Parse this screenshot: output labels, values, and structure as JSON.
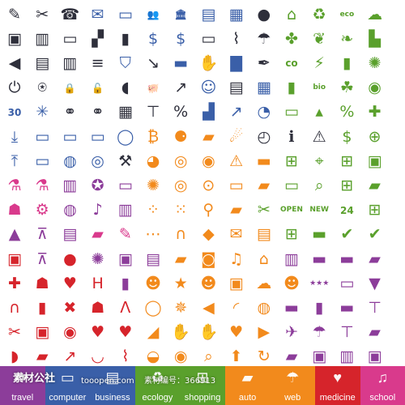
{
  "colors": {
    "dark": "#2e2f3b",
    "blue": "#3a5fa8",
    "green": "#5aa02c",
    "orange": "#f28a1c",
    "red": "#d6242b",
    "purple": "#8c3d9a",
    "pink": "#d93a8c",
    "grey": "#8c8c8c"
  },
  "icon_rows": [
    [
      [
        "pen-icon",
        "✎",
        "dark"
      ],
      [
        "tools-icon",
        "✂",
        "dark"
      ],
      [
        "phone-icon",
        "☎",
        "dark"
      ],
      [
        "mail-icon",
        "✉",
        "blue"
      ],
      [
        "folder-icon",
        "▭",
        "blue"
      ],
      [
        "users-icon",
        "👥",
        "blue"
      ],
      [
        "bank-icon",
        "🏛",
        "blue"
      ],
      [
        "document-icon",
        "▤",
        "blue"
      ],
      [
        "clipboard-icon",
        "▦",
        "blue"
      ],
      [
        "disc-icon",
        "●",
        "dark"
      ],
      [
        "home-icon",
        "⌂",
        "green"
      ],
      [
        "recycle-icon",
        "♻",
        "green"
      ],
      [
        "eco-text-icon",
        "eco",
        "green"
      ],
      [
        "cloud-icon",
        "☁",
        "green"
      ]
    ],
    [
      [
        "speaker-icon",
        "▣",
        "dark"
      ],
      [
        "address-book-icon",
        "▥",
        "dark"
      ],
      [
        "monitor-icon",
        "▭",
        "dark"
      ],
      [
        "clapper-icon",
        "▞",
        "dark"
      ],
      [
        "file-icon",
        "▮",
        "dark"
      ],
      [
        "money-bag-icon",
        "$",
        "blue"
      ],
      [
        "coin-bag-icon",
        "$",
        "blue"
      ],
      [
        "id-card-icon",
        "▭",
        "dark"
      ],
      [
        "chart-screen-icon",
        "⌇",
        "dark"
      ],
      [
        "umbrella-icon",
        "☂",
        "dark"
      ],
      [
        "puzzle-icon",
        "✤",
        "green"
      ],
      [
        "leaves-icon",
        "❦",
        "green"
      ],
      [
        "sprout-icon",
        "❧",
        "green"
      ],
      [
        "factory-icon",
        "▙",
        "green"
      ]
    ],
    [
      [
        "sound-icon",
        "◀",
        "dark"
      ],
      [
        "printer-icon",
        "▤",
        "dark"
      ],
      [
        "trash-icon",
        "▥",
        "dark"
      ],
      [
        "server-icon",
        "≡",
        "dark"
      ],
      [
        "shield-icon",
        "⛉",
        "blue"
      ],
      [
        "decline-chart-icon",
        "↘",
        "dark"
      ],
      [
        "briefcase-icon",
        "▬",
        "blue"
      ],
      [
        "handshake-icon",
        "✋",
        "blue"
      ],
      [
        "bar-chart-icon",
        "▇",
        "blue"
      ],
      [
        "pen-tool-icon",
        "✒",
        "dark"
      ],
      [
        "co2-text-icon",
        "co",
        "green"
      ],
      [
        "plug-icon",
        "⚡",
        "green"
      ],
      [
        "battery-icon",
        "▮",
        "green"
      ],
      [
        "bulb-icon",
        "✺",
        "green"
      ]
    ],
    [
      [
        "power-icon",
        "⏻",
        "dark"
      ],
      [
        "router-icon",
        "⍟",
        "dark"
      ],
      [
        "lock-icon",
        "🔒",
        "dark"
      ],
      [
        "unlock-icon",
        "🔓",
        "dark"
      ],
      [
        "mouse-icon",
        "◖",
        "dark"
      ],
      [
        "piggy-bank-icon",
        "🐖",
        "blue"
      ],
      [
        "line-chart-icon",
        "↗",
        "dark"
      ],
      [
        "person-icon",
        "☺",
        "blue"
      ],
      [
        "fax-icon",
        "▤",
        "dark"
      ],
      [
        "solar-panel-icon",
        "▦",
        "blue"
      ],
      [
        "tablets-icon",
        "▮",
        "green"
      ],
      [
        "bio-text-icon",
        "bio",
        "green"
      ],
      [
        "footprint-icon",
        "☘",
        "green"
      ],
      [
        "globe-leaf-icon",
        "◉",
        "green"
      ]
    ],
    [
      [
        "calendar-icon",
        "30",
        "blue"
      ],
      [
        "network-icon",
        "✳",
        "blue"
      ],
      [
        "link-icon",
        "⚭",
        "dark"
      ],
      [
        "chain-icon",
        "⚭",
        "dark"
      ],
      [
        "calculator-icon",
        "▦",
        "dark"
      ],
      [
        "hierarchy-icon",
        "⊤",
        "dark"
      ],
      [
        "percent-icon",
        "%",
        "dark"
      ],
      [
        "growth-chart-icon",
        "▟",
        "blue"
      ],
      [
        "chart-board-icon",
        "↗",
        "blue"
      ],
      [
        "pie-chart-icon",
        "◔",
        "blue"
      ],
      [
        "credit-card-icon",
        "▭",
        "green"
      ],
      [
        "shopping-bag-icon",
        "▴",
        "green"
      ],
      [
        "percent-tag-icon",
        "%",
        "green"
      ],
      [
        "gift-icon",
        "✚",
        "green"
      ]
    ],
    [
      [
        "download-icon",
        "⤓",
        "blue"
      ],
      [
        "laptop-icon",
        "▭",
        "blue"
      ],
      [
        "chat-icon",
        "▭",
        "blue"
      ],
      [
        "windows-icon",
        "▭",
        "blue"
      ],
      [
        "chat-bubbles-icon",
        "◯",
        "blue"
      ],
      [
        "bitcoin-icon",
        "₿",
        "orange"
      ],
      [
        "motorbike-icon",
        "⚈",
        "orange"
      ],
      [
        "car-icon",
        "▰",
        "orange"
      ],
      [
        "runner-icon",
        "☄",
        "orange"
      ],
      [
        "gauge-icon",
        "◴",
        "dark"
      ],
      [
        "info-icon",
        "ℹ",
        "dark"
      ],
      [
        "warning-icon",
        "⚠",
        "dark"
      ],
      [
        "dollar-tag-icon",
        "$",
        "green"
      ],
      [
        "cart-add-icon",
        "⊕",
        "green"
      ]
    ],
    [
      [
        "upload-icon",
        "⤒",
        "blue"
      ],
      [
        "computer-icon",
        "▭",
        "blue"
      ],
      [
        "gamepad-icon",
        "◍",
        "blue"
      ],
      [
        "vinyl-icon",
        "◎",
        "blue"
      ],
      [
        "wrench-icon",
        "⚒",
        "dark"
      ],
      [
        "speedometer-icon",
        "◕",
        "orange"
      ],
      [
        "wheel-icon",
        "◎",
        "orange"
      ],
      [
        "steering-icon",
        "◉",
        "orange"
      ],
      [
        "road-icon",
        "⚠",
        "orange"
      ],
      [
        "ticket-icon",
        "▬",
        "orange"
      ],
      [
        "cart-icon",
        "⊞",
        "green"
      ],
      [
        "tag-icon",
        "⌖",
        "green"
      ],
      [
        "basket-icon",
        "⊞",
        "green"
      ],
      [
        "box-icon",
        "▣",
        "green"
      ]
    ],
    [
      [
        "microscope-icon",
        "⚗",
        "pink"
      ],
      [
        "flask-icon",
        "⚗",
        "pink"
      ],
      [
        "bookcase-icon",
        "▥",
        "purple"
      ],
      [
        "award-icon",
        "✪",
        "purple"
      ],
      [
        "ticket-badge-icon",
        "▭",
        "purple"
      ],
      [
        "citrus-icon",
        "✺",
        "orange"
      ],
      [
        "aps-badge-icon",
        "◎",
        "orange"
      ],
      [
        "battery-car-icon",
        "⊙",
        "orange"
      ],
      [
        "folder-car-icon",
        "▭",
        "orange"
      ],
      [
        "car-front-icon",
        "▰",
        "orange"
      ],
      [
        "credit-cards-icon",
        "▭",
        "green"
      ],
      [
        "magnifier-icon",
        "⌕",
        "green"
      ],
      [
        "trolley-icon",
        "⊞",
        "green"
      ],
      [
        "delivery-icon",
        "▰",
        "green"
      ]
    ],
    [
      [
        "person-stand-icon",
        "☗",
        "pink"
      ],
      [
        "gear-brain-icon",
        "⚙",
        "pink"
      ],
      [
        "globe-icon",
        "◍",
        "purple"
      ],
      [
        "music-icon",
        "♪",
        "purple"
      ],
      [
        "theatre-icon",
        "▥",
        "purple"
      ],
      [
        "seeds-icon",
        "⁘",
        "orange"
      ],
      [
        "joystick-icon",
        "⁙",
        "orange"
      ],
      [
        "pin-icon",
        "⚲",
        "orange"
      ],
      [
        "tow-truck-icon",
        "▰",
        "orange"
      ],
      [
        "scissors-coupon-icon",
        "✂",
        "green"
      ],
      [
        "open-sign-icon",
        "OPEN",
        "green"
      ],
      [
        "new-badge-icon",
        "NEW",
        "green"
      ],
      [
        "clock-24-icon",
        "24",
        "green"
      ],
      [
        "cart-green-icon",
        "⊞",
        "green"
      ]
    ],
    [
      [
        "graduation-icon",
        "▲",
        "purple"
      ],
      [
        "compass-icon",
        "⊼",
        "purple"
      ],
      [
        "sketchbook-icon",
        "▤",
        "purple"
      ],
      [
        "tablet-pen-icon",
        "▰",
        "pink"
      ],
      [
        "pencil-icon",
        "✎",
        "pink"
      ],
      [
        "share-icon",
        "⋯",
        "orange"
      ],
      [
        "headphones-icon",
        "∩",
        "orange"
      ],
      [
        "palette-icon",
        "◆",
        "orange"
      ],
      [
        "envelope-open-icon",
        "✉",
        "orange"
      ],
      [
        "mailbox-icon",
        "▤",
        "orange"
      ],
      [
        "sale-basket-icon",
        "⊞",
        "green"
      ],
      [
        "tag-sale-icon",
        "▬",
        "green"
      ],
      [
        "shield-check-icon",
        "✔",
        "green"
      ],
      [
        "check-circle-icon",
        "✔",
        "green"
      ]
    ],
    [
      [
        "bus-icon",
        "▣",
        "red"
      ],
      [
        "drafting-icon",
        "⊼",
        "purple"
      ],
      [
        "apple-icon",
        "●",
        "red"
      ],
      [
        "palette-paint-icon",
        "✺",
        "purple"
      ],
      [
        "floppy-icon",
        "▣",
        "purple"
      ],
      [
        "clipboard-sheet-icon",
        "▤",
        "purple"
      ],
      [
        "camcorder-icon",
        "▰",
        "orange"
      ],
      [
        "camera-icon",
        "◙",
        "orange"
      ],
      [
        "music-note-icon",
        "♫",
        "orange"
      ],
      [
        "house-orange-icon",
        "⌂",
        "orange"
      ],
      [
        "picture-icon",
        "▥",
        "purple"
      ],
      [
        "label-icon",
        "▬",
        "purple"
      ],
      [
        "hat-icon",
        "▬",
        "purple"
      ],
      [
        "car-purple-icon",
        "▰",
        "purple"
      ]
    ],
    [
      [
        "first-aid-kit-icon",
        "✚",
        "red"
      ],
      [
        "doctor-icon",
        "☗",
        "red"
      ],
      [
        "heart-hand-icon",
        "♥",
        "red"
      ],
      [
        "hospital-icon",
        "H",
        "red"
      ],
      [
        "phone-book-icon",
        "▮",
        "purple"
      ],
      [
        "group-icon",
        "☻",
        "orange"
      ],
      [
        "star-badge-icon",
        "★",
        "orange"
      ],
      [
        "people-icon",
        "☻",
        "orange"
      ],
      [
        "film-reel-icon",
        "▣",
        "orange"
      ],
      [
        "cloud-orange-icon",
        "☁",
        "orange"
      ],
      [
        "people-orange-icon",
        "☻",
        "orange"
      ],
      [
        "rating-stars-icon",
        "★★★",
        "purple"
      ],
      [
        "hotel-sign-icon",
        "▭",
        "purple"
      ],
      [
        "cocktail-icon",
        "▼",
        "purple"
      ]
    ],
    [
      [
        "stethoscope-icon",
        "∩",
        "red"
      ],
      [
        "thermometer-icon",
        "▮",
        "red"
      ],
      [
        "bandage-cross-icon",
        "✖",
        "red"
      ],
      [
        "nurse-icon",
        "☗",
        "red"
      ],
      [
        "ribbon-icon",
        "ᐱ",
        "red"
      ],
      [
        "speech-icon",
        "◯",
        "orange"
      ],
      [
        "compass-rose-icon",
        "✵",
        "orange"
      ],
      [
        "megaphone-icon",
        "◀",
        "orange"
      ],
      [
        "rss-icon",
        "◜",
        "orange"
      ],
      [
        "globe-web-icon",
        "◍",
        "orange"
      ],
      [
        "suitcase-icon",
        "▬",
        "purple"
      ],
      [
        "passport-icon",
        "▮",
        "purple"
      ],
      [
        "ticket-purple-icon",
        "▬",
        "purple"
      ],
      [
        "road-sign-icon",
        "⊤",
        "purple"
      ]
    ],
    [
      [
        "pliers-icon",
        "✂",
        "red"
      ],
      [
        "medicine-icon",
        "▣",
        "red"
      ],
      [
        "eye-icon",
        "◉",
        "red"
      ],
      [
        "heart-rate-icon",
        "♥",
        "red"
      ],
      [
        "heart-hand2-icon",
        "♥",
        "red"
      ],
      [
        "bird-icon",
        "◢",
        "orange"
      ],
      [
        "thumbs-up-icon",
        "✋",
        "orange"
      ],
      [
        "thumbs-down-icon",
        "✋",
        "orange"
      ],
      [
        "heart-orange-icon",
        "♥",
        "orange"
      ],
      [
        "play-icon",
        "▶",
        "orange"
      ],
      [
        "plane-icon",
        "✈",
        "purple"
      ],
      [
        "palm-icon",
        "☂",
        "purple"
      ],
      [
        "signpost-icon",
        "⊤",
        "purple"
      ],
      [
        "car-side-icon",
        "▰",
        "purple"
      ]
    ],
    [
      [
        "pill-icon",
        "◗",
        "red"
      ],
      [
        "ambulance-icon",
        "▰",
        "red"
      ],
      [
        "syringe-icon",
        "↗",
        "red"
      ],
      [
        "tooth-icon",
        "◡",
        "red"
      ],
      [
        "ecg-icon",
        "⌇",
        "red"
      ],
      [
        "scale-icon",
        "◒",
        "orange"
      ],
      [
        "eye-orange-icon",
        "◉",
        "orange"
      ],
      [
        "search-orange-icon",
        "⌕",
        "orange"
      ],
      [
        "arrow-up-icon",
        "⬆",
        "orange"
      ],
      [
        "refresh-icon",
        "↻",
        "orange"
      ],
      [
        "ship-icon",
        "▰",
        "purple"
      ],
      [
        "school-bus-icon",
        "▣",
        "purple"
      ],
      [
        "building-icon",
        "▥",
        "purple"
      ],
      [
        "train-icon",
        "▣",
        "purple"
      ]
    ]
  ],
  "categories": [
    {
      "label": "travel",
      "color": "#8c3d9a",
      "icon": "✈"
    },
    {
      "label": "computer",
      "color": "#3a5fa8",
      "icon": "▭"
    },
    {
      "label": "business",
      "color": "#3a5fa8",
      "icon": "▤"
    },
    {
      "label": "ecology",
      "color": "#5aa02c",
      "icon": "♻"
    },
    {
      "label": "shopping",
      "color": "#5aa02c",
      "icon": "⊞"
    },
    {
      "label": "auto",
      "color": "#f28a1c",
      "icon": "▰"
    },
    {
      "label": "web",
      "color": "#f28a1c",
      "icon": "☂"
    },
    {
      "label": "medicine",
      "color": "#d6242b",
      "icon": "♥"
    },
    {
      "label": "school",
      "color": "#d93a8c",
      "icon": "♫"
    }
  ],
  "watermark": {
    "left_text": "素材公社",
    "mid_text": "tooopen.com",
    "right_text": "素材编号：366913"
  }
}
